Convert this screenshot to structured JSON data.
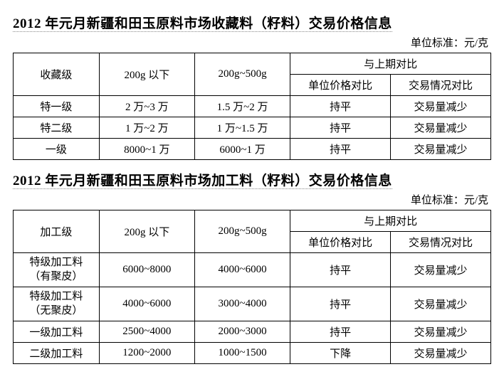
{
  "unit_label": "单位标准：元/克",
  "colors": {
    "text": "#000000",
    "bg": "#ffffff",
    "border": "#000000",
    "dotted": "#888888"
  },
  "table1": {
    "title": "2012 年元月新疆和田玉原料市场收藏料（籽料）交易价格信息",
    "header": {
      "level": "收藏级",
      "price_under_200g": "200g 以下",
      "price_200_500g": "200g~500g",
      "compare_group": "与上期对比",
      "compare_price": "单位价格对比",
      "compare_trade": "交易情况对比"
    },
    "rows": [
      {
        "level": "特一级",
        "p1": "2 万~3 万",
        "p2": "1.5 万~2 万",
        "c1": "持平",
        "c2": "交易量减少"
      },
      {
        "level": "特二级",
        "p1": "1 万~2 万",
        "p2": "1 万~1.5 万",
        "c1": "持平",
        "c2": "交易量减少"
      },
      {
        "level": "一级",
        "p1": "8000~1 万",
        "p2": "6000~1 万",
        "c1": "持平",
        "c2": "交易量减少"
      }
    ]
  },
  "table2": {
    "title": "2012 年元月新疆和田玉原料市场加工料（籽料）交易价格信息",
    "header": {
      "level": "加工级",
      "price_under_200g": "200g 以下",
      "price_200_500g": "200g~500g",
      "compare_group": "与上期对比",
      "compare_price": "单位价格对比",
      "compare_trade": "交易情况对比"
    },
    "rows": [
      {
        "level_l1": "特级加工料",
        "level_l2": "（有聚皮）",
        "p1": "6000~8000",
        "p2": "4000~6000",
        "c1": "持平",
        "c2": "交易量减少"
      },
      {
        "level_l1": "特级加工料",
        "level_l2": "（无聚皮）",
        "p1": "4000~6000",
        "p2": "3000~4000",
        "c1": "持平",
        "c2": "交易量减少"
      },
      {
        "level_l1": "一级加工料",
        "level_l2": "",
        "p1": "2500~4000",
        "p2": "2000~3000",
        "c1": "持平",
        "c2": "交易量减少"
      },
      {
        "level_l1": "二级加工料",
        "level_l2": "",
        "p1": "1200~2000",
        "p2": "1000~1500",
        "c1": "下降",
        "c2": "交易量减少"
      }
    ]
  }
}
